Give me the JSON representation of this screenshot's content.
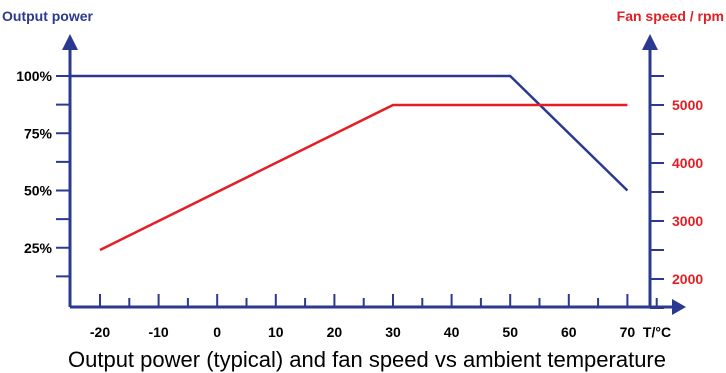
{
  "chart_data": {
    "type": "line",
    "title": "Output power (typical) and fan speed vs ambient temperature",
    "xlabel": "T/°C",
    "ylabel_left": "Output power",
    "ylabel_right": "Fan speed / rpm",
    "x_ticks": [
      "-20",
      "-10",
      "0",
      "10",
      "20",
      "30",
      "40",
      "50",
      "60",
      "70"
    ],
    "x_range": [
      -25,
      75
    ],
    "y_left_ticks": [
      "25%",
      "50%",
      "75%",
      "100%"
    ],
    "y_left_range": [
      0,
      100
    ],
    "y_right_ticks": [
      "2000",
      "3000",
      "4000",
      "5000"
    ],
    "y_right_range": [
      1500,
      5900
    ],
    "grid": false,
    "series": [
      {
        "name": "Output power",
        "axis": "left",
        "color": "#2B3990",
        "x": [
          -25,
          50,
          70
        ],
        "y": [
          100,
          100,
          50
        ]
      },
      {
        "name": "Fan speed",
        "axis": "right",
        "color": "#E31E24",
        "x": [
          -20,
          30,
          70
        ],
        "y": [
          2500,
          5000,
          5000
        ]
      }
    ]
  }
}
